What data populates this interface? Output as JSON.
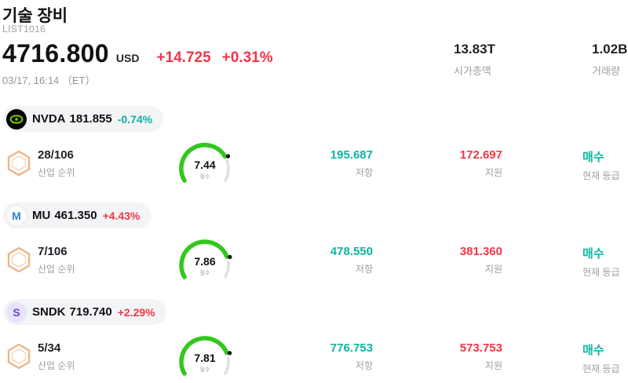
{
  "header": {
    "title": "기술 장비",
    "subtitle": "LIST1016",
    "price": "4716.800",
    "currency": "USD",
    "change": "+14.725",
    "change_pct": "+0.31%",
    "datetime": "03/17, 16:14 （ET）",
    "market_cap": {
      "value": "13.83T",
      "label": "시가총액"
    },
    "volume": {
      "value": "1.02B",
      "label": "거래량"
    }
  },
  "labels": {
    "industry_rank": "산업 순위",
    "score": "점수",
    "resistance": "저항",
    "support": "지원",
    "current_rating": "현재 등급"
  },
  "colors": {
    "red": "#f23645",
    "teal": "#0fb3a2",
    "gauge_fill": "#33c71e",
    "gauge_track": "#dfdfdf",
    "label_gray": "#9aa0a6",
    "nvidia_green": "#76b900"
  },
  "stocks": [
    {
      "ticker": "NVDA",
      "price": "181.855",
      "change_pct": "-0.74%",
      "change_color": "#0fb3a2",
      "rank": "28/106",
      "score": "7.44",
      "resistance": "195.687",
      "support": "172.697",
      "rating": "매수"
    },
    {
      "ticker": "MU",
      "price": "461.350",
      "change_pct": "+4.43%",
      "change_color": "#f23645",
      "rank": "7/106",
      "score": "7.86",
      "resistance": "478.550",
      "support": "381.360",
      "rating": "매수",
      "logo_text": "M"
    },
    {
      "ticker": "SNDK",
      "price": "719.740",
      "change_pct": "+2.29%",
      "change_color": "#f23645",
      "rank": "5/34",
      "score": "7.81",
      "resistance": "776.753",
      "support": "573.753",
      "rating": "매수",
      "logo_text": "S"
    }
  ]
}
